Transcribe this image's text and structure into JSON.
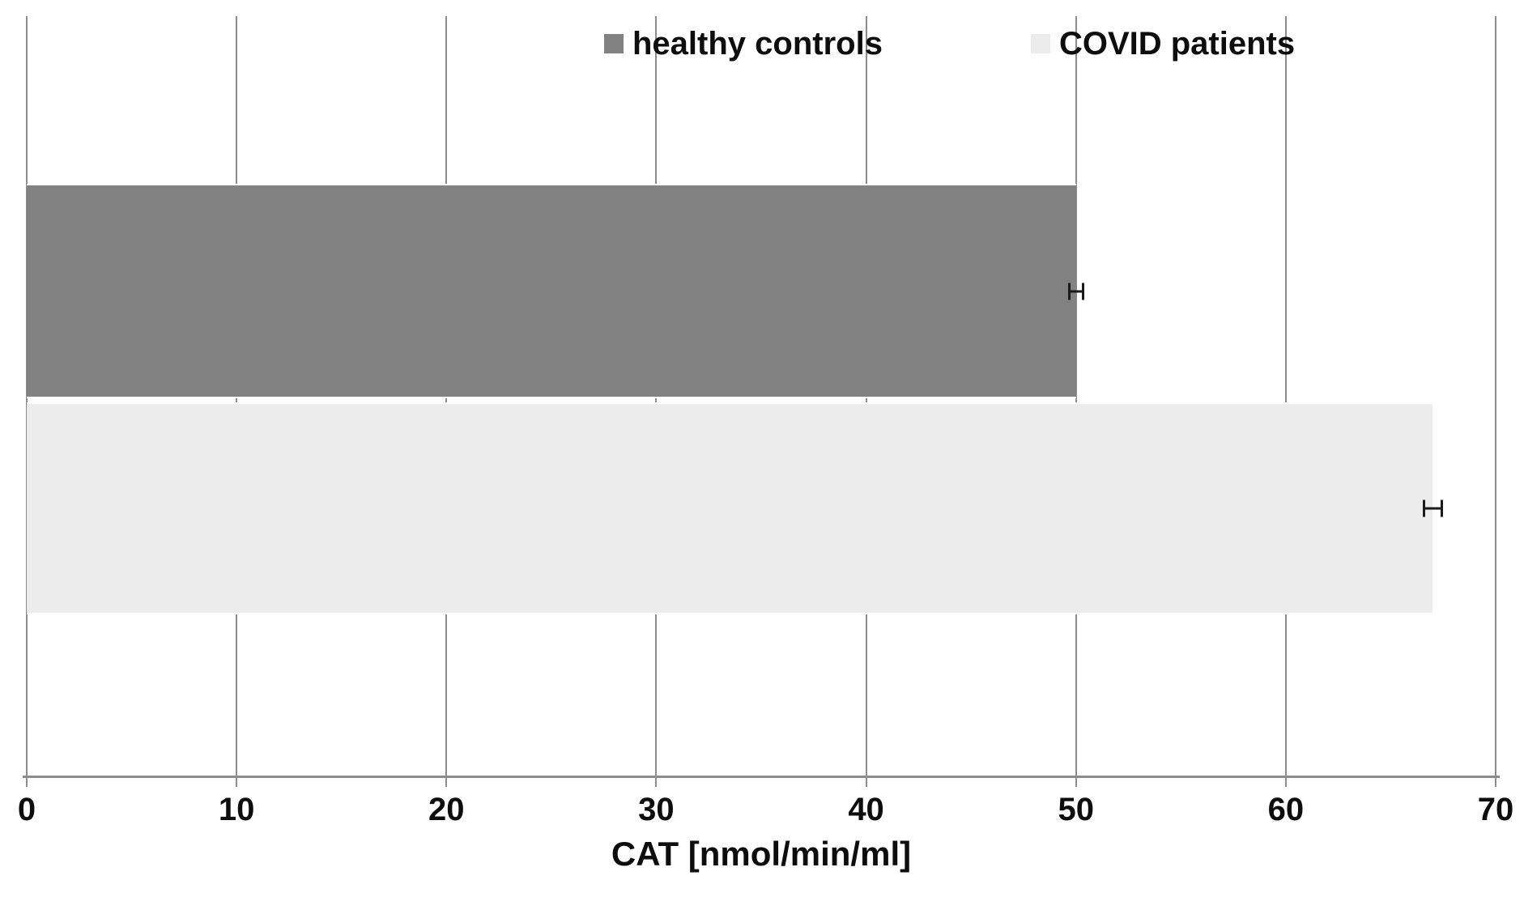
{
  "chart_data": {
    "type": "bar",
    "orientation": "horizontal",
    "xlabel": "CAT [nmol/min/ml]",
    "xlim": [
      0,
      70
    ],
    "xticks": [
      0,
      10,
      20,
      30,
      40,
      50,
      60,
      70
    ],
    "tick_labels": [
      "0",
      "10",
      "20",
      "30",
      "40",
      "50",
      "60",
      "70"
    ],
    "grid": "vertical",
    "legend_position": "top-center-inside",
    "categories": [
      "healthy controls",
      "COVID patients"
    ],
    "series": [
      {
        "name": "healthy controls",
        "value": 50,
        "error": 0.35,
        "color": "#828282"
      },
      {
        "name": "COVID patients",
        "value": 67,
        "error": 0.45,
        "color": "#ececec"
      }
    ]
  },
  "colors": {
    "background": "#ffffff",
    "gridline": "#8c8c8c",
    "axis_line": "#8c8c8c",
    "error_bar": "#1a1a1a",
    "text": "#0d0d0d",
    "bar_healthy_controls": "#828282",
    "bar_covid_patients": "#ececec"
  }
}
